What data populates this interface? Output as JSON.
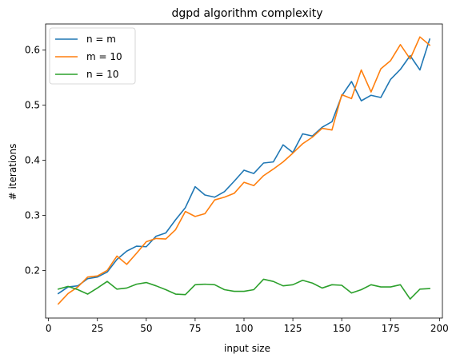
{
  "chart_data": {
    "type": "line",
    "title": "dgpd algorithm complexity",
    "xlabel": "input size",
    "ylabel": "# iterations",
    "xlim": [
      -1.5,
      201.5
    ],
    "ylim": [
      0.1135,
      0.6475
    ],
    "xticks": [
      0,
      25,
      50,
      75,
      100,
      125,
      150,
      175,
      200
    ],
    "xtick_labels": [
      "0",
      "25",
      "50",
      "75",
      "100",
      "125",
      "150",
      "175",
      "200"
    ],
    "yticks": [
      0.2,
      0.3,
      0.4,
      0.5,
      0.6
    ],
    "ytick_labels": [
      "0.2",
      "0.3",
      "0.4",
      "0.5",
      "0.6"
    ],
    "grid": false,
    "legend_position": "top-left",
    "x": [
      5,
      10,
      15,
      20,
      25,
      30,
      35,
      40,
      45,
      50,
      55,
      60,
      65,
      70,
      75,
      80,
      85,
      90,
      95,
      100,
      105,
      110,
      115,
      120,
      125,
      130,
      135,
      140,
      145,
      150,
      155,
      160,
      165,
      170,
      175,
      180,
      185,
      190,
      195
    ],
    "series": [
      {
        "name": "n = m",
        "color": "#1f77b4",
        "values": [
          0.158,
          0.17,
          0.172,
          0.185,
          0.188,
          0.197,
          0.22,
          0.235,
          0.244,
          0.243,
          0.262,
          0.268,
          0.292,
          0.314,
          0.352,
          0.337,
          0.333,
          0.343,
          0.362,
          0.382,
          0.376,
          0.395,
          0.397,
          0.428,
          0.414,
          0.448,
          0.444,
          0.46,
          0.47,
          0.517,
          0.543,
          0.508,
          0.518,
          0.514,
          0.547,
          0.565,
          0.59,
          0.564,
          0.62
        ]
      },
      {
        "name": "m = 10",
        "color": "#ff7f0e",
        "values": [
          0.139,
          0.158,
          0.17,
          0.188,
          0.19,
          0.2,
          0.226,
          0.211,
          0.231,
          0.252,
          0.258,
          0.257,
          0.274,
          0.307,
          0.298,
          0.303,
          0.328,
          0.333,
          0.34,
          0.36,
          0.354,
          0.372,
          0.384,
          0.397,
          0.413,
          0.43,
          0.442,
          0.458,
          0.455,
          0.519,
          0.512,
          0.564,
          0.524,
          0.566,
          0.581,
          0.61,
          0.584,
          0.624,
          0.609
        ]
      },
      {
        "name": "n = 10",
        "color": "#2ca02c",
        "values": [
          0.166,
          0.171,
          0.165,
          0.157,
          0.168,
          0.18,
          0.166,
          0.168,
          0.175,
          0.178,
          0.172,
          0.165,
          0.157,
          0.156,
          0.174,
          0.175,
          0.174,
          0.165,
          0.162,
          0.162,
          0.165,
          0.184,
          0.18,
          0.172,
          0.174,
          0.182,
          0.177,
          0.168,
          0.174,
          0.173,
          0.159,
          0.165,
          0.174,
          0.17,
          0.17,
          0.174,
          0.148,
          0.166,
          0.167
        ]
      }
    ]
  }
}
